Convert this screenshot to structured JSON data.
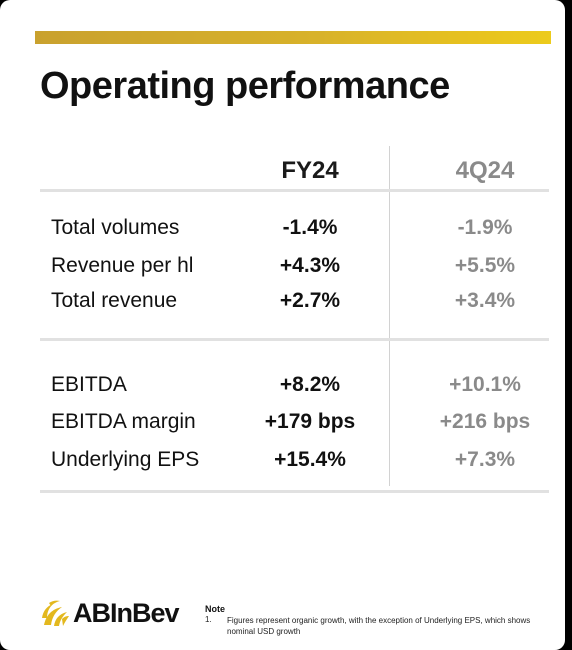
{
  "title": "Operating performance",
  "columns": {
    "fy": "FY24",
    "q": "4Q24"
  },
  "section1": [
    {
      "label": "Total volumes",
      "fy": "-1.4%",
      "q": "-1.9%"
    },
    {
      "label": "Revenue per hl",
      "fy": "+4.3%",
      "q": "+5.5%"
    },
    {
      "label": "Total revenue",
      "fy": "+2.7%",
      "q": "+3.4%"
    }
  ],
  "section2": [
    {
      "label": "EBITDA",
      "fy": "+8.2%",
      "q": "+10.1%"
    },
    {
      "label": "EBITDA margin",
      "fy": "+179 bps",
      "q": "+216 bps"
    },
    {
      "label": "Underlying EPS",
      "fy": "+15.4%",
      "q": "+7.3%"
    }
  ],
  "logo": {
    "text": "ABInBev"
  },
  "note": {
    "heading": "Note",
    "number": "1.",
    "text": "Figures represent organic growth, with the exception of Underlying EPS, which shows nominal USD growth"
  },
  "colors": {
    "accent_gold": "#d8b22a",
    "muted": "#8a8a8a"
  }
}
